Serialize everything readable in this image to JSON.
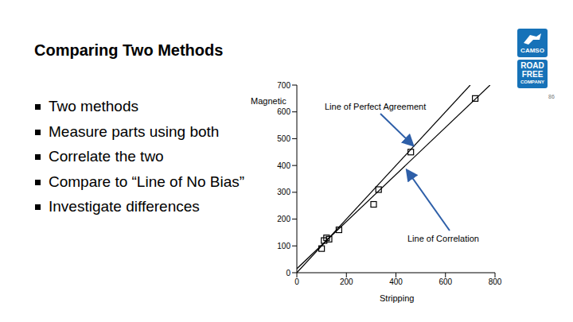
{
  "slide": {
    "title": "Comparing Two Methods",
    "bullets": [
      "Two methods",
      "Measure parts using both",
      "Correlate the two",
      "Compare to “Line of No Bias”",
      "Investigate differences"
    ],
    "logo": [
      "CAMSO",
      "ROAD",
      "FREE",
      "COMPANY"
    ],
    "page_number": "86"
  },
  "chart_data": {
    "type": "scatter",
    "x_label": "Stripping",
    "y_label": "Magnetic",
    "xlim": [
      0,
      800
    ],
    "ylim": [
      0,
      700
    ],
    "xticks": [
      0,
      200,
      400,
      600,
      800
    ],
    "yticks": [
      0,
      100,
      200,
      300,
      400,
      500,
      600,
      700
    ],
    "grid": false,
    "series": [
      {
        "name": "Line of Perfect Agreement",
        "type": "line",
        "color": "#000000",
        "x": [
          0,
          700
        ],
        "values": [
          0,
          700
        ]
      },
      {
        "name": "Line of Correlation",
        "type": "line",
        "color": "#000000",
        "x": [
          0,
          780
        ],
        "values": [
          15,
          700
        ]
      },
      {
        "type": "scatter",
        "marker": "square",
        "color": "#000000",
        "x": [
          100,
          110,
          120,
          130,
          170,
          310,
          330,
          460,
          720
        ],
        "values": [
          90,
          120,
          130,
          125,
          160,
          255,
          310,
          450,
          650
        ]
      }
    ]
  }
}
